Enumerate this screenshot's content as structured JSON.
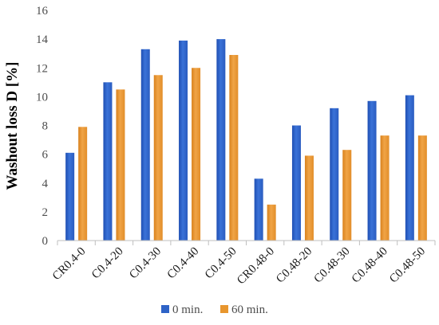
{
  "chart_data": {
    "type": "bar",
    "title": "",
    "xlabel": "",
    "ylabel": "Washout loss D [%]",
    "ylim": [
      0,
      16
    ],
    "yticks": [
      0,
      2,
      4,
      6,
      8,
      10,
      12,
      14,
      16
    ],
    "grid": false,
    "legend_position": "bottom",
    "categories": [
      "CR0.4-0",
      "C0.4-20",
      "C0.4-30",
      "C0.4-40",
      "C0.4-50",
      "CR0.48-0",
      "C0.48-20",
      "C0.48-30",
      "C0.48-40",
      "C0.48-50"
    ],
    "series": [
      {
        "name": "0 min.",
        "color": "#2e63c7",
        "values": [
          6.1,
          11.0,
          13.3,
          13.9,
          14.0,
          4.3,
          8.0,
          9.2,
          9.7,
          10.1
        ]
      },
      {
        "name": "60 min.",
        "color": "#e8962e",
        "values": [
          7.9,
          10.5,
          11.5,
          12.0,
          12.9,
          2.5,
          5.9,
          6.3,
          7.3,
          7.3
        ]
      }
    ]
  }
}
